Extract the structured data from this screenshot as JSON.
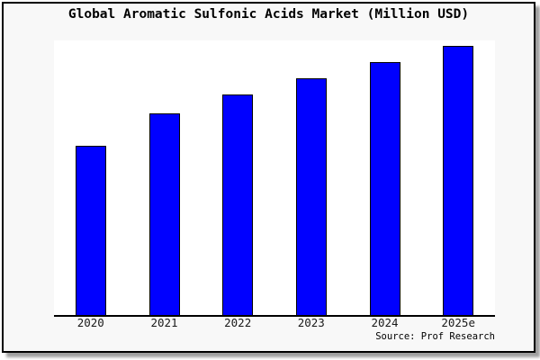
{
  "chart": {
    "source_label": "Source: Prof Research",
    "colors": {
      "bar_fill": "#0000ff",
      "bar_edge": "#000000",
      "frame_background": "#f8f8f8",
      "plot_background": "#ffffff",
      "frame_border": "#000000",
      "axis": "#000000"
    }
  },
  "chart_data": {
    "type": "bar",
    "title": "Global Aromatic Sulfonic Acids Market (Million USD)",
    "categories": [
      "2020",
      "2021",
      "2022",
      "2023",
      "2024",
      "2025e"
    ],
    "values": [
      63,
      75,
      82,
      88,
      94,
      100
    ],
    "xlabel": "",
    "ylabel": "",
    "ylim": [
      0,
      102
    ],
    "grid": false,
    "legend": false,
    "y_axis_ticks_shown": false,
    "annotations": [
      "Source: Prof Research"
    ]
  }
}
